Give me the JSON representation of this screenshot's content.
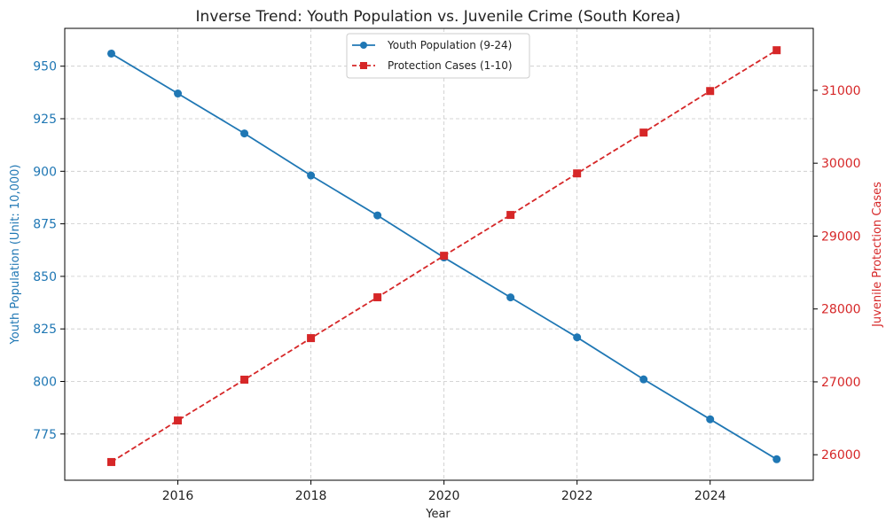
{
  "chart_data": {
    "type": "line",
    "title": "Inverse Trend: Youth Population vs. Juvenile Crime (South Korea)",
    "xlabel": "Year",
    "ylabel_left": "Youth Population (Unit: 10,000)",
    "ylabel_right": "Juvenile Protection Cases",
    "x": [
      2015,
      2016,
      2017,
      2018,
      2019,
      2020,
      2021,
      2022,
      2023,
      2024,
      2025
    ],
    "xlim": [
      2014.3,
      2025.55
    ],
    "xticks": [
      2016,
      2018,
      2020,
      2022,
      2024
    ],
    "ylim_left": [
      753,
      968
    ],
    "yticks_left": [
      775,
      800,
      825,
      850,
      875,
      900,
      925,
      950
    ],
    "ylim_right": [
      25650,
      31850
    ],
    "yticks_right": [
      26000,
      27000,
      28000,
      29000,
      30000,
      31000
    ],
    "grid": true,
    "legend_position": "top-center",
    "series": [
      {
        "name": "Youth Population (9-24)",
        "axis": "left",
        "color": "#1f77b4",
        "marker": "circle",
        "line_style": "solid",
        "values": [
          956,
          937,
          918,
          898,
          879,
          859,
          840,
          821,
          801,
          782,
          763
        ]
      },
      {
        "name": "Protection Cases (1-10)",
        "axis": "right",
        "color": "#d62728",
        "marker": "square",
        "line_style": "dashed",
        "values": [
          25900,
          26470,
          27030,
          27600,
          28160,
          28730,
          29290,
          29860,
          30420,
          30990,
          31550
        ]
      }
    ]
  }
}
